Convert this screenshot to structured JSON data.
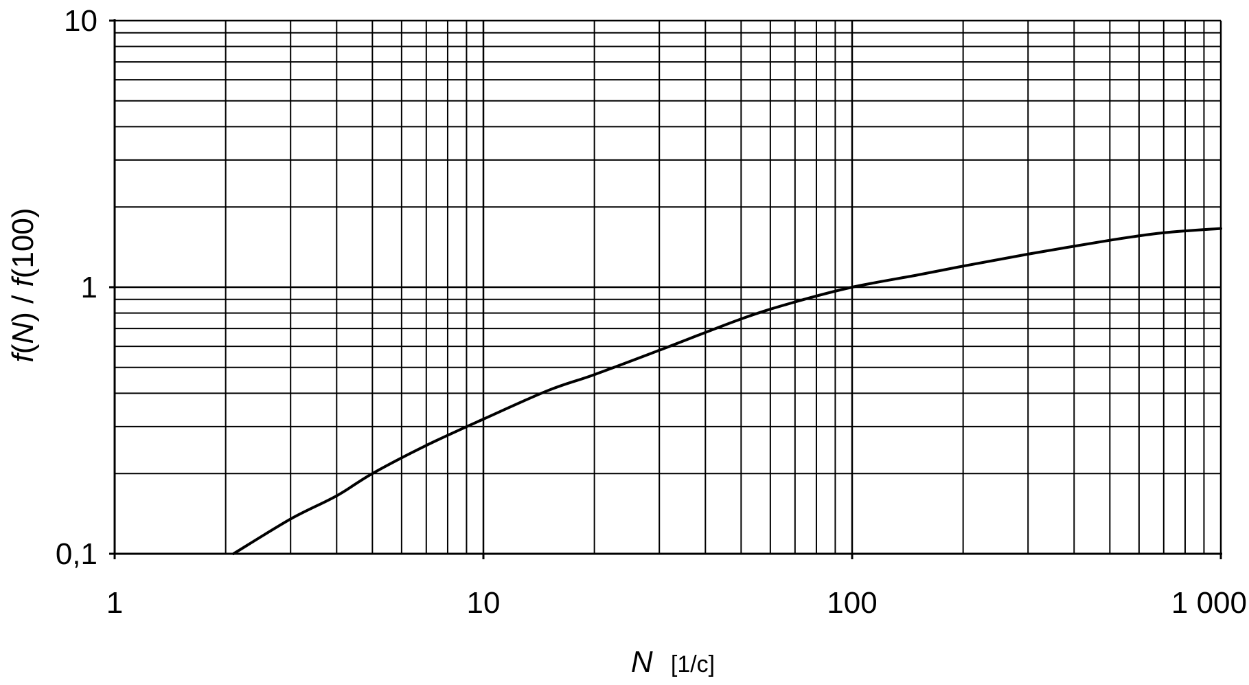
{
  "chart_data": {
    "type": "line",
    "title": "",
    "xlabel": {
      "var": "N",
      "unit": "[1/c]"
    },
    "ylabel": {
      "f1": "f",
      "p1": "(",
      "v1": "N",
      "p2": ") / ",
      "f2": "f",
      "p3": "(100)"
    },
    "x_scale": "log",
    "y_scale": "log",
    "xlim": [
      1,
      1000
    ],
    "ylim": [
      0.1,
      10
    ],
    "x_ticks": [
      {
        "value": 1,
        "label": "1"
      },
      {
        "value": 10,
        "label": "10"
      },
      {
        "value": 100,
        "label": "100"
      },
      {
        "value": 1000,
        "label": "1 000"
      }
    ],
    "y_ticks": [
      {
        "value": 0.1,
        "label": "0,1"
      },
      {
        "value": 1,
        "label": "1"
      },
      {
        "value": 10,
        "label": "10"
      }
    ],
    "grid": true,
    "legend": "none",
    "series": [
      {
        "color": "#000000",
        "x": [
          2.1,
          3,
          4,
          5,
          7,
          10,
          15,
          20,
          30,
          50,
          70,
          100,
          150,
          200,
          300,
          500,
          700,
          1000
        ],
        "y": [
          0.1,
          0.135,
          0.165,
          0.2,
          0.255,
          0.32,
          0.41,
          0.47,
          0.58,
          0.76,
          0.88,
          1.0,
          1.11,
          1.2,
          1.33,
          1.5,
          1.6,
          1.66
        ]
      }
    ]
  }
}
